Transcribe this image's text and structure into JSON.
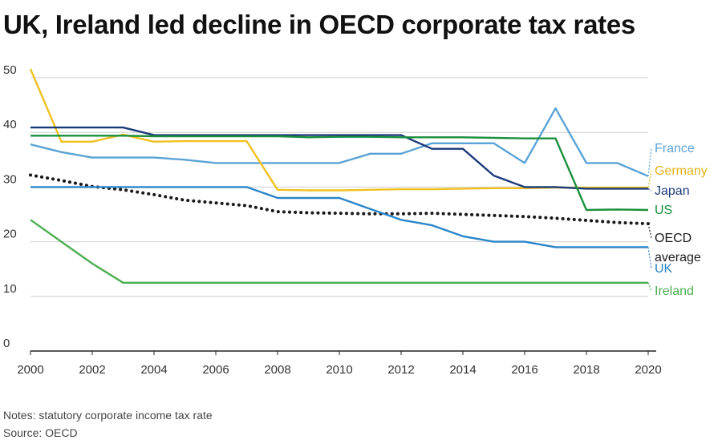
{
  "title": "UK, Ireland led decline in OECD corporate tax rates",
  "notes": "Notes: statutory corporate income tax rate",
  "source": "Source: OECD",
  "chart_data": {
    "type": "line",
    "title": "UK, Ireland led decline in OECD corporate tax rates",
    "xlabel": "",
    "ylabel": "",
    "xlim": [
      2000,
      2020
    ],
    "ylim": [
      0,
      50
    ],
    "x_ticks": [
      "2000",
      "2002",
      "2004",
      "2006",
      "2008",
      "2010",
      "2012",
      "2014",
      "2016",
      "2018",
      "2020"
    ],
    "y_ticks": [
      "0",
      "10",
      "20",
      "30",
      "40",
      "50"
    ],
    "x": [
      2000,
      2001,
      2002,
      2003,
      2004,
      2005,
      2006,
      2007,
      2008,
      2009,
      2010,
      2011,
      2012,
      2013,
      2014,
      2015,
      2016,
      2017,
      2018,
      2019,
      2020
    ],
    "series": [
      {
        "name": "France",
        "color": "#5aa3d6",
        "dashed": false,
        "values": [
          37.8,
          36.4,
          35.4,
          35.4,
          35.4,
          35.0,
          34.4,
          34.4,
          34.4,
          34.4,
          34.4,
          36.1,
          36.1,
          38.0,
          38.0,
          38.0,
          34.4,
          44.4,
          34.4,
          34.4,
          32.0
        ]
      },
      {
        "name": "Germany",
        "color": "#f0c01e",
        "dashed": false,
        "values": [
          51.6,
          38.3,
          38.3,
          39.6,
          38.3,
          38.4,
          38.4,
          38.4,
          29.5,
          29.4,
          29.4,
          29.5,
          29.6,
          29.6,
          29.7,
          29.8,
          29.8,
          29.9,
          29.9,
          29.9,
          29.9
        ]
      },
      {
        "name": "Japan",
        "color": "#1b3a7a",
        "dashed": false,
        "values": [
          40.9,
          40.9,
          40.9,
          40.9,
          39.5,
          39.5,
          39.5,
          39.5,
          39.5,
          39.5,
          39.5,
          39.5,
          39.5,
          37.0,
          37.0,
          32.1,
          30.0,
          30.0,
          29.7,
          29.7,
          29.7
        ]
      },
      {
        "name": "US",
        "color": "#1a8f3c",
        "dashed": false,
        "values": [
          39.4,
          39.4,
          39.4,
          39.4,
          39.3,
          39.3,
          39.3,
          39.3,
          39.3,
          39.1,
          39.2,
          39.2,
          39.1,
          39.1,
          39.1,
          39.0,
          38.9,
          38.9,
          25.8,
          25.9,
          25.8
        ]
      },
      {
        "name": "OECD average",
        "color": "#1a1a1a",
        "dashed": true,
        "values": [
          32.2,
          31.2,
          30.1,
          29.5,
          28.6,
          27.6,
          27.1,
          26.6,
          25.5,
          25.3,
          25.2,
          25.1,
          25.1,
          25.2,
          25.0,
          24.8,
          24.6,
          24.3,
          23.9,
          23.5,
          23.3
        ]
      },
      {
        "name": "UK",
        "color": "#2b85c8",
        "dashed": false,
        "values": [
          30,
          30,
          30,
          30,
          30,
          30,
          30,
          30,
          28,
          28,
          28,
          26,
          24,
          23,
          21,
          20,
          20,
          19,
          19,
          19,
          19
        ]
      },
      {
        "name": "Ireland",
        "color": "#4caf50",
        "dashed": false,
        "values": [
          24,
          20,
          16,
          12.5,
          12.5,
          12.5,
          12.5,
          12.5,
          12.5,
          12.5,
          12.5,
          12.5,
          12.5,
          12.5,
          12.5,
          12.5,
          12.5,
          12.5,
          12.5,
          12.5,
          12.5
        ]
      }
    ],
    "legend": [
      {
        "name": "France",
        "lines": [
          "France"
        ],
        "color": "#5aa3d6"
      },
      {
        "name": "Germany",
        "lines": [
          "Germany"
        ],
        "color": "#e3b21b"
      },
      {
        "name": "Japan",
        "lines": [
          "Japan"
        ],
        "color": "#1b3a7a"
      },
      {
        "name": "US",
        "lines": [
          "US"
        ],
        "color": "#1a8f3c"
      },
      {
        "name": "OECD average",
        "lines": [
          "OECD",
          "average"
        ],
        "color": "#1a1a1a"
      },
      {
        "name": "UK",
        "lines": [
          "UK"
        ],
        "color": "#2b85c8"
      },
      {
        "name": "Ireland",
        "lines": [
          "Ireland"
        ],
        "color": "#4caf50"
      }
    ],
    "legend_placement": "right, at line ends",
    "grid": true
  }
}
